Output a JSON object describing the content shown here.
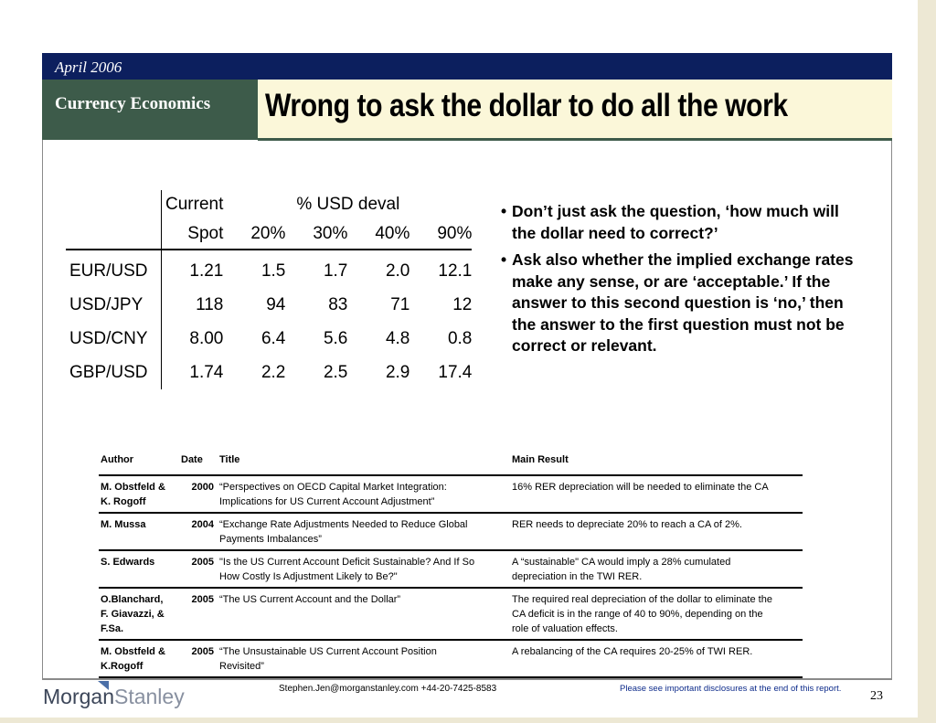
{
  "header": {
    "date": "April 2006",
    "section": "Currency Economics",
    "title": "Wrong to ask the dollar to do all the work"
  },
  "fx_table": {
    "header_row1": [
      "",
      "Current",
      "% USD deval",
      "",
      "",
      ""
    ],
    "header_row2": [
      "",
      "Spot",
      "20%",
      "30%",
      "40%",
      "90%"
    ],
    "rows": [
      [
        "EUR/USD",
        "1.21",
        "1.5",
        "1.7",
        "2.0",
        "12.1"
      ],
      [
        "USD/JPY",
        "118",
        "94",
        "83",
        "71",
        "12"
      ],
      [
        "USD/CNY",
        "8.00",
        "6.4",
        "5.6",
        "4.8",
        "0.8"
      ],
      [
        "GBP/USD",
        "1.74",
        "2.2",
        "2.5",
        "2.9",
        "17.4"
      ]
    ]
  },
  "bullets": [
    "Don’t just ask the question, ‘how much will the dollar need to correct?’",
    "Ask also whether the implied exchange rates make any sense, or are ‘acceptable.’  If the answer to this second question is ‘no,’ then the answer to the first question must not be correct or relevant."
  ],
  "literature": {
    "headers": [
      "Author",
      "Date",
      "Title",
      "Main Result"
    ],
    "rows": [
      {
        "author": [
          "M. Obstfeld &",
          "K. Rogoff"
        ],
        "date": "2000",
        "title": [
          "“Perspectives on OECD Capital Market Integration:",
          "Implications for US Current Account Adjustment”"
        ],
        "result": [
          "16% RER depreciation will be needed to eliminate the CA"
        ]
      },
      {
        "author": [
          "M. Mussa"
        ],
        "date": "2004",
        "title": [
          "“Exchange Rate Adjustments Needed to Reduce Global",
          "Payments Imbalances”"
        ],
        "result": [
          "RER needs to depreciate 20% to reach a CA of 2%."
        ]
      },
      {
        "author": [
          "S. Edwards"
        ],
        "date": "2005",
        "title": [
          "\"Is the US Current Account Deficit Sustainable? And If So",
          "How Costly Is Adjustment Likely to Be?\""
        ],
        "result": [
          "A “sustainable\" CA would imply a 28% cumulated",
          "depreciation in the TWI RER."
        ]
      },
      {
        "author": [
          "O.Blanchard,",
          "F. Giavazzi, &",
          "F.Sa."
        ],
        "date": "2005",
        "title": [
          "“The US Current Account and the Dollar”"
        ],
        "result": [
          "The required real depreciation of the dollar to eliminate the",
          "CA deficit is in the range of 40 to 90%, depending on the",
          "role of valuation effects."
        ]
      },
      {
        "author": [
          "M. Obstfeld &",
          "K.Rogoff"
        ],
        "date": "2005",
        "title": [
          " “The Unsustainable US Current Account Position",
          "Revisited”"
        ],
        "result": [
          "A rebalancing of the CA requires 20-25% of TWI RER."
        ]
      }
    ]
  },
  "footer": {
    "logo_morgan": "Morgan",
    "logo_stanley": "Stanley",
    "contact": "Stephen.Jen@morganstanley.com +44-20-7425-8583",
    "disclaimer": "Please see  important disclosures at the end of this report.",
    "page": "23"
  }
}
